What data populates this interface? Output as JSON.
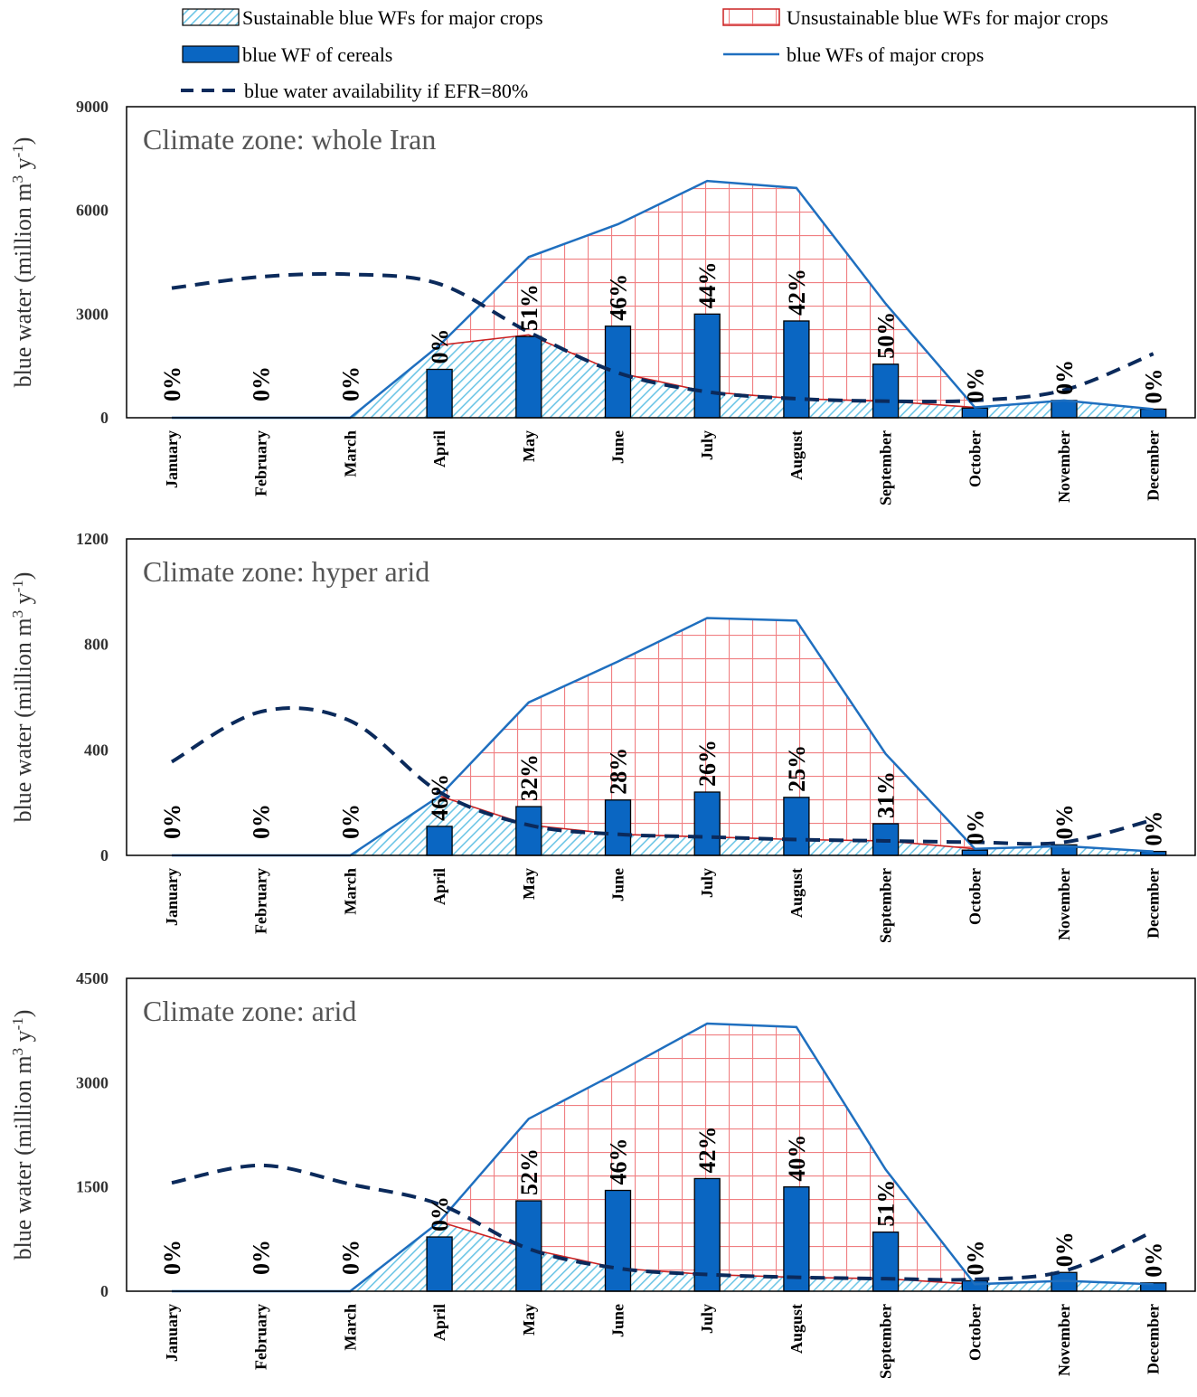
{
  "legend": {
    "sustainable": "Sustainable blue WFs for major crops",
    "unsustainable": "Unsustainable blue WFs for major crops",
    "cereals": "blue WF of cereals",
    "major_crops": "blue WFs of major crops",
    "availability": "blue water availability if EFR=80%"
  },
  "colors": {
    "major_line": "#1f6fbf",
    "cereal_bar": "#0a66c2",
    "availability_line": "#0b2a5b",
    "sustainable_hatch": "#6ec6e6",
    "unsustainable_grid": "#f07f82",
    "sustainable_edge": "#cc2222"
  },
  "chart_data": [
    {
      "type": "bar",
      "title": "Climate zone: whole Iran",
      "ylabel": "blue water (million m3 y-1)",
      "ylabel_parts": {
        "base": "blue water (million m",
        "sup1": "3",
        "mid": " y",
        "sup2": "-1",
        "end": ")"
      },
      "ylim": [
        0,
        9000
      ],
      "yticks": [
        "0",
        "3000",
        "6000",
        "9000"
      ],
      "categories": [
        "January",
        "February",
        "March",
        "April",
        "May",
        "June",
        "July",
        "August",
        "September",
        "October",
        "November",
        "December"
      ],
      "series": [
        {
          "name": "blue WFs of major crops",
          "values": [
            0,
            0,
            0,
            2100,
            4650,
            5600,
            6850,
            6650,
            3300,
            300,
            500,
            250
          ]
        },
        {
          "name": "blue WF of cereals",
          "values": [
            0,
            0,
            0,
            1400,
            2350,
            2650,
            3000,
            2800,
            1550,
            280,
            500,
            250
          ]
        },
        {
          "name": "blue water availability if EFR=80%",
          "values": [
            3750,
            4080,
            4150,
            3870,
            2480,
            1300,
            750,
            550,
            480,
            500,
            800,
            1850
          ]
        },
        {
          "name": "Sustainable blue WFs for major crops",
          "values": [
            0,
            0,
            0,
            2100,
            2400,
            1300,
            750,
            550,
            480,
            300,
            500,
            250
          ]
        }
      ],
      "labels": [
        "0%",
        "0%",
        "0%",
        "0%",
        "51%",
        "46%",
        "44%",
        "42%",
        "50%",
        "0%",
        "0%",
        "0%"
      ]
    },
    {
      "type": "bar",
      "title": "Climate zone: hyper arid",
      "ylabel": "blue water (million m3 y-1)",
      "ylabel_parts": {
        "base": "blue water (million m",
        "sup1": "3",
        "mid": " y",
        "sup2": "-1",
        "end": ")"
      },
      "ylim": [
        0,
        1200
      ],
      "yticks": [
        "0",
        "400",
        "800",
        "1200"
      ],
      "categories": [
        "January",
        "February",
        "March",
        "April",
        "May",
        "June",
        "July",
        "August",
        "September",
        "October",
        "November",
        "December"
      ],
      "series": [
        {
          "name": "blue WFs of major crops",
          "values": [
            0,
            0,
            0,
            225,
            580,
            735,
            900,
            890,
            385,
            25,
            35,
            15
          ]
        },
        {
          "name": "blue WF of cereals",
          "values": [
            0,
            0,
            0,
            110,
            185,
            210,
            240,
            220,
            120,
            20,
            40,
            15
          ]
        },
        {
          "name": "blue water availability if EFR=80%",
          "values": [
            355,
            545,
            510,
            240,
            115,
            80,
            70,
            60,
            55,
            50,
            50,
            135
          ]
        },
        {
          "name": "Sustainable blue WFs for major crops",
          "values": [
            0,
            0,
            0,
            225,
            115,
            80,
            70,
            60,
            55,
            25,
            35,
            15
          ]
        }
      ],
      "labels": [
        "0%",
        "0%",
        "0%",
        "46%",
        "32%",
        "28%",
        "26%",
        "25%",
        "31%",
        "0%",
        "0%",
        "0%"
      ]
    },
    {
      "type": "bar",
      "title": "Climate zone: arid",
      "ylabel": "blue water (million m3 y-1)",
      "ylabel_parts": {
        "base": "blue water (million m",
        "sup1": "3",
        "mid": " y",
        "sup2": "-1",
        "end": ")"
      },
      "ylim": [
        0,
        4500
      ],
      "yticks": [
        "0",
        "1500",
        "3000",
        "4500"
      ],
      "categories": [
        "January",
        "February",
        "March",
        "April",
        "May",
        "June",
        "July",
        "August",
        "September",
        "October",
        "November",
        "December"
      ],
      "series": [
        {
          "name": "blue WFs of major crops",
          "values": [
            0,
            0,
            0,
            1000,
            2480,
            3150,
            3850,
            3800,
            1750,
            100,
            150,
            100
          ]
        },
        {
          "name": "blue WF of cereals",
          "values": [
            0,
            0,
            0,
            780,
            1300,
            1450,
            1620,
            1500,
            850,
            150,
            270,
            120
          ]
        },
        {
          "name": "blue water availability if EFR=80%",
          "values": [
            1560,
            1810,
            1540,
            1250,
            610,
            330,
            240,
            200,
            180,
            170,
            290,
            860
          ]
        },
        {
          "name": "Sustainable blue WFs for major crops",
          "values": [
            0,
            0,
            0,
            1000,
            610,
            330,
            240,
            200,
            180,
            100,
            150,
            100
          ]
        }
      ],
      "labels": [
        "0%",
        "0%",
        "0%",
        "0%",
        "52%",
        "46%",
        "42%",
        "40%",
        "51%",
        "0%",
        "0%",
        "0%"
      ]
    }
  ]
}
